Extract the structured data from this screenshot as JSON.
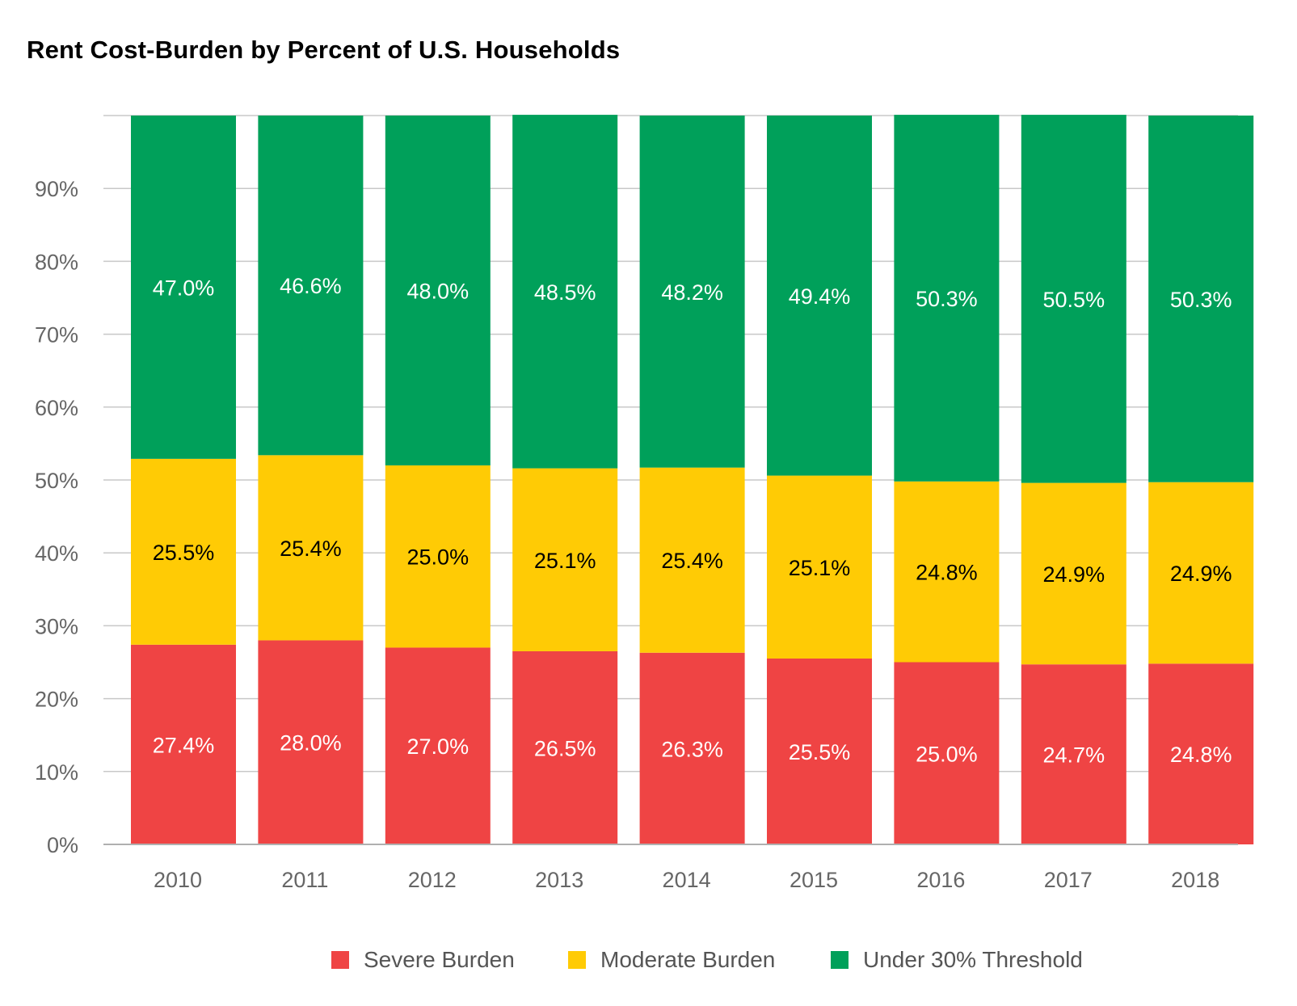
{
  "chart_data": {
    "type": "bar",
    "stacked": true,
    "title": "Rent Cost-Burden by Percent of U.S. Households",
    "categories": [
      "2010",
      "2011",
      "2012",
      "2013",
      "2014",
      "2015",
      "2016",
      "2017",
      "2018"
    ],
    "y_ticks": [
      "0%",
      "10%",
      "20%",
      "30%",
      "40%",
      "50%",
      "60%",
      "70%",
      "80%",
      "90%"
    ],
    "ylim": [
      0,
      100
    ],
    "grid": true,
    "legend_position": "bottom",
    "series": [
      {
        "name": "Severe Burden",
        "color": "#EF4444",
        "label_color": "#FFFFFF",
        "values": [
          27.4,
          28.0,
          27.0,
          26.5,
          26.3,
          25.5,
          25.0,
          24.7,
          24.8
        ],
        "labels": [
          "27.4%",
          "28.0%",
          "27.0%",
          "26.5%",
          "26.3%",
          "25.5%",
          "25.0%",
          "24.7%",
          "24.8%"
        ]
      },
      {
        "name": "Moderate Burden",
        "color": "#FFCB05",
        "label_color": "#000000",
        "values": [
          25.5,
          25.4,
          25.0,
          25.1,
          25.4,
          25.1,
          24.8,
          24.9,
          24.9
        ],
        "labels": [
          "25.5%",
          "25.4%",
          "25.0%",
          "25.1%",
          "25.4%",
          "25.1%",
          "24.8%",
          "24.9%",
          "24.9%"
        ]
      },
      {
        "name": "Under 30% Threshold",
        "color": "#00A05A",
        "label_color": "#FFFFFF",
        "values": [
          47.0,
          46.6,
          48.0,
          48.5,
          48.2,
          49.4,
          50.3,
          50.5,
          50.3
        ],
        "labels": [
          "47.0%",
          "46.6%",
          "48.0%",
          "48.5%",
          "48.2%",
          "49.4%",
          "50.3%",
          "50.5%",
          "50.3%"
        ]
      }
    ]
  }
}
